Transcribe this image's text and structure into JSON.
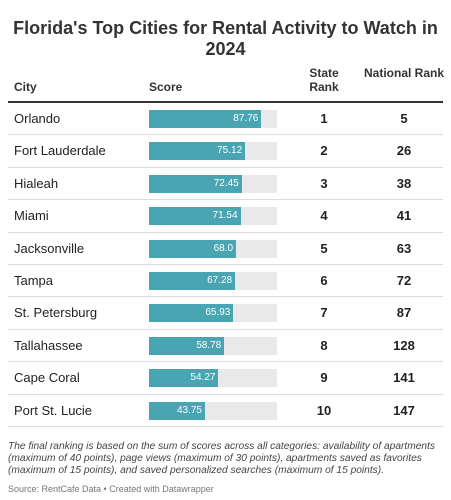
{
  "title": "Florida's Top Cities for Rental Activity to Watch in 2024",
  "headers": {
    "city": "City",
    "score": "Score",
    "state_rank": "State Rank",
    "national_rank": "National Rank"
  },
  "bar_color": "#4aa5b3",
  "bar_track_color": "#e9e9e9",
  "chart_data": {
    "type": "table",
    "title": "Florida's Top Cities for Rental Activity to Watch in 2024",
    "columns": [
      "City",
      "Score",
      "State Rank",
      "National Rank"
    ],
    "score_range": [
      0,
      100
    ],
    "rows": [
      {
        "city": "Orlando",
        "score": 87.76,
        "score_label": "87.76",
        "state_rank": "1",
        "national_rank": "5"
      },
      {
        "city": "Fort Lauderdale",
        "score": 75.12,
        "score_label": "75.12",
        "state_rank": "2",
        "national_rank": "26"
      },
      {
        "city": "Hialeah",
        "score": 72.45,
        "score_label": "72.45",
        "state_rank": "3",
        "national_rank": "38"
      },
      {
        "city": "Miami",
        "score": 71.54,
        "score_label": "71.54",
        "state_rank": "4",
        "national_rank": "41"
      },
      {
        "city": "Jacksonville",
        "score": 68.0,
        "score_label": "68.0",
        "state_rank": "5",
        "national_rank": "63"
      },
      {
        "city": "Tampa",
        "score": 67.28,
        "score_label": "67.28",
        "state_rank": "6",
        "national_rank": "72"
      },
      {
        "city": "St. Petersburg",
        "score": 65.93,
        "score_label": "65.93",
        "state_rank": "7",
        "national_rank": "87"
      },
      {
        "city": "Tallahassee",
        "score": 58.78,
        "score_label": "58.78",
        "state_rank": "8",
        "national_rank": "128"
      },
      {
        "city": "Cape Coral",
        "score": 54.27,
        "score_label": "54.27",
        "state_rank": "9",
        "national_rank": "141"
      },
      {
        "city": "Port St. Lucie",
        "score": 43.75,
        "score_label": "43.75",
        "state_rank": "10",
        "national_rank": "147"
      }
    ]
  },
  "note": "The final ranking is based on the sum of scores across all categories: availability of apartments (maximum of 40 points), page views (maximum of 30 points), apartments saved as favorites (maximum of 15 points), and saved personalized searches (maximum of 15 points).",
  "source": "Source: RentCafe Data • Created with Datawrapper"
}
